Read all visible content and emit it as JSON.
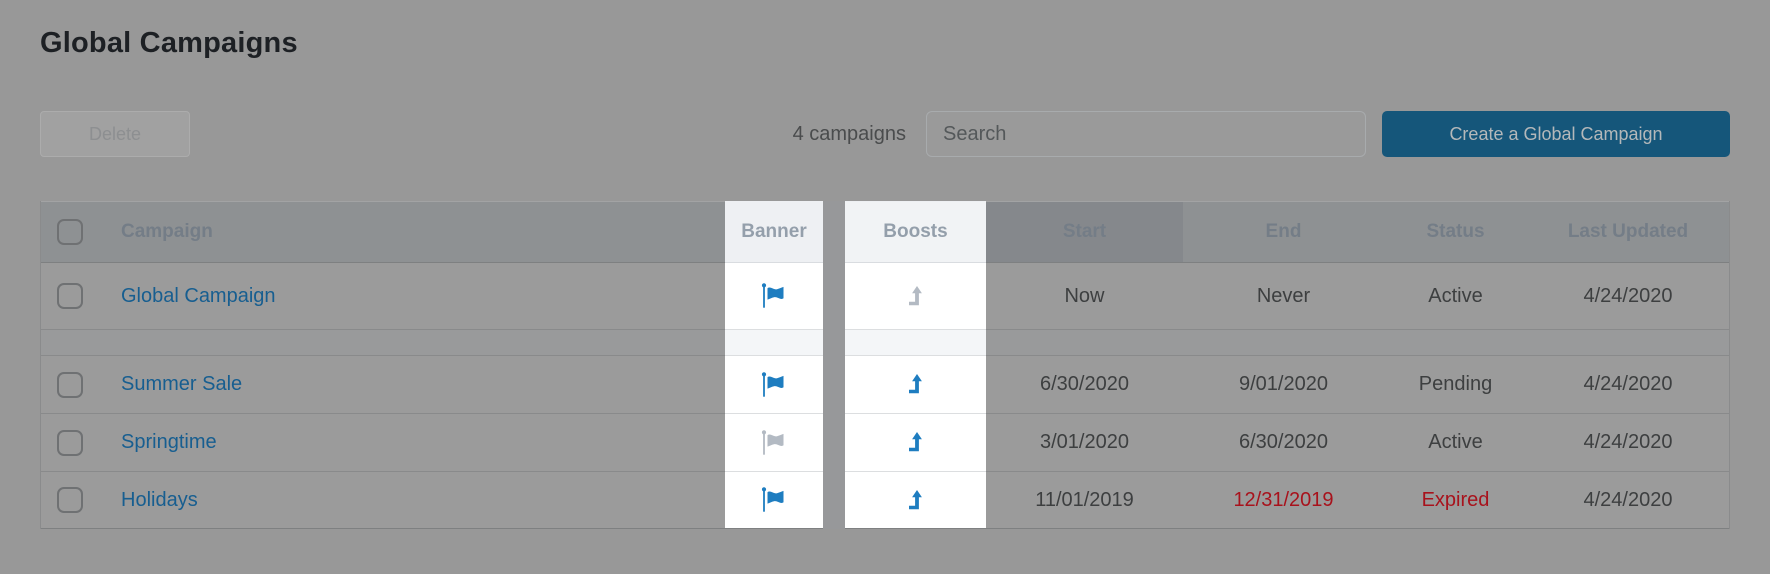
{
  "page": {
    "title": "Global Campaigns"
  },
  "toolbar": {
    "delete_label": "Delete",
    "count_text": "4 campaigns",
    "search_placeholder": "Search",
    "search_value": "",
    "create_label": "Create a Global Campaign"
  },
  "table": {
    "headers": {
      "campaign": "Campaign",
      "banner": "Banner",
      "boosts": "Boosts",
      "start": "Start",
      "end": "End",
      "status": "Status",
      "last_updated": "Last Updated"
    },
    "sorted_column": "start",
    "highlighted_columns": [
      "banner",
      "boosts"
    ],
    "rows": [
      {
        "campaign": "Global Campaign",
        "banner": "on",
        "boost": "inactive",
        "start": "Now",
        "end": "Never",
        "end_alert": false,
        "status": "Active",
        "status_alert": false,
        "last_updated": "4/24/2020",
        "separator_after": true
      },
      {
        "campaign": "Summer Sale",
        "banner": "on",
        "boost": "active",
        "start": "6/30/2020",
        "end": "9/01/2020",
        "end_alert": false,
        "status": "Pending",
        "status_alert": false,
        "last_updated": "4/24/2020",
        "separator_after": false
      },
      {
        "campaign": "Springtime",
        "banner": "off",
        "boost": "active",
        "start": "3/01/2020",
        "end": "6/30/2020",
        "end_alert": false,
        "status": "Active",
        "status_alert": false,
        "last_updated": "4/24/2020",
        "separator_after": false
      },
      {
        "campaign": "Holidays",
        "banner": "on",
        "boost": "active",
        "start": "11/01/2019",
        "end": "12/31/2019",
        "end_alert": true,
        "status": "Expired",
        "status_alert": true,
        "last_updated": "4/24/2020",
        "separator_after": false
      }
    ]
  },
  "icons": {
    "banner": "flag-icon",
    "boost": "level-up-icon",
    "row_select": "checkbox"
  },
  "colors": {
    "icon_blue": "#1e7dc0",
    "icon_gray": "#b3bac3",
    "link_blue": "#175e90",
    "alert_red": "#a8121c",
    "create_button_bg": "#15567a",
    "highlight_bg": "#ffffff",
    "overlay_gray": "#989898"
  }
}
